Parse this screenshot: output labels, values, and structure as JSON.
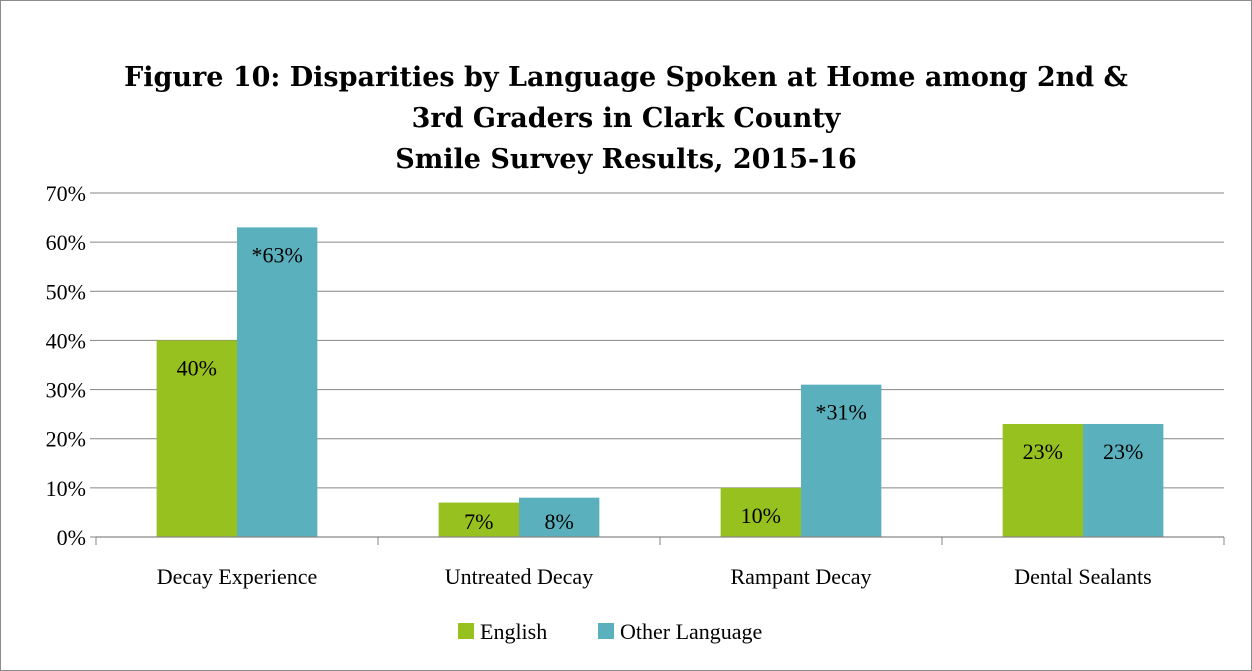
{
  "chart_data": {
    "type": "bar",
    "title_lines": [
      "Figure 10: Disparities by Language Spoken at Home among 2nd &",
      "3rd Graders in Clark County",
      "Smile Survey Results, 2015-16"
    ],
    "categories": [
      "Decay Experience",
      "Untreated Decay",
      "Rampant Decay",
      "Dental Sealants"
    ],
    "series": [
      {
        "name": "English",
        "color": "#97c11f",
        "values": [
          40,
          7,
          10,
          23
        ],
        "labels": [
          "40%",
          "7%",
          "10%",
          "23%"
        ]
      },
      {
        "name": "Other Language",
        "color": "#5bb0bd",
        "values": [
          63,
          8,
          31,
          23
        ],
        "labels": [
          "*63%",
          "8%",
          "*31%",
          "23%"
        ]
      }
    ],
    "ylim": [
      0,
      70
    ],
    "yticks": [
      0,
      10,
      20,
      30,
      40,
      50,
      60,
      70
    ],
    "ytick_labels": [
      "0%",
      "10%",
      "20%",
      "30%",
      "40%",
      "50%",
      "60%",
      "70%"
    ],
    "xlabel": "",
    "ylabel": "",
    "grid": true,
    "legend_position": "bottom"
  }
}
